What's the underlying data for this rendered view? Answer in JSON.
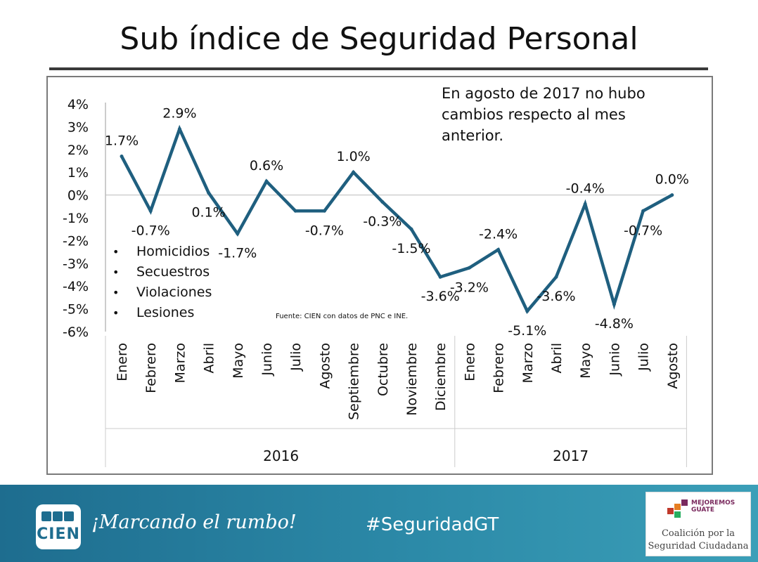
{
  "page": {
    "title": "Sub índice de Seguridad Personal",
    "note": "En agosto de 2017 no hubo cambios respecto al mes anterior.",
    "legend_items": [
      "Homicidios",
      "Secuestros",
      "Violaciones",
      "Lesiones"
    ],
    "source": "Fuente: CIEN con datos de PNC e INE."
  },
  "footer": {
    "logo_text": "CIEN",
    "slogan": "¡Marcando el rumbo!",
    "hashtag": "#SeguridadGT",
    "partner_brand_top": "MEJOREMOS",
    "partner_brand_bottom": "GUATE",
    "partner_name_line1": "Coalición por la",
    "partner_name_line2": "Seguridad Ciudadana",
    "bg_color": "#1e6d8f"
  },
  "chart_data": {
    "type": "line",
    "title": "Sub índice de Seguridad Personal",
    "categories": [
      "Enero",
      "Febrero",
      "Marzo",
      "Abril",
      "Mayo",
      "Junio",
      "Julio",
      "Agosto",
      "Septiembre",
      "Octubre",
      "Noviembre",
      "Diciembre",
      "Enero",
      "Febrero",
      "Marzo",
      "Abril",
      "Mayo",
      "Junio",
      "Julio",
      "Agosto"
    ],
    "values": [
      1.7,
      -0.7,
      2.9,
      0.1,
      -1.7,
      0.6,
      -0.7,
      -0.7,
      1.0,
      -0.3,
      -1.5,
      -3.6,
      -3.2,
      -2.4,
      -5.1,
      -3.6,
      -0.4,
      -4.8,
      -0.7,
      0.0
    ],
    "data_labels": [
      "1.7%",
      "-0.7%",
      "2.9%",
      "0.1%",
      "-1.7%",
      "0.6%",
      "",
      "-0.7%",
      "1.0%",
      "-0.3%",
      "-1.5%",
      "-3.6%",
      "-3.2%",
      "-2.4%",
      "-5.1%",
      "-3.6%",
      "-0.4%",
      "-4.8%",
      "-0.7%",
      "0.0%"
    ],
    "years": [
      {
        "label": "2016",
        "count": 12
      },
      {
        "label": "2017",
        "count": 8
      }
    ],
    "y_ticks": [
      "4%",
      "3%",
      "2%",
      "1%",
      "0%",
      "-1%",
      "-2%",
      "-3%",
      "-4%",
      "-5%",
      "-6%"
    ],
    "ylim": [
      -6,
      4
    ],
    "series_color": "#1f5f7f",
    "grid": false
  }
}
